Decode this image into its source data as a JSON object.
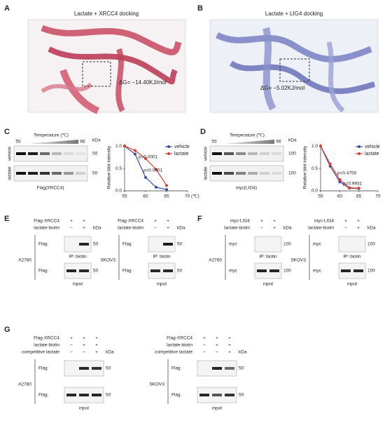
{
  "panels": {
    "A": {
      "letter": "A",
      "title": "Lactate + XRCC4  docking",
      "delta_g": "ΔG= −14.40KJ/mol"
    },
    "B": {
      "letter": "B",
      "title": "Lactate + LIG4  docking",
      "delta_g": "ΔG= −5.02KJ/mol"
    },
    "C": {
      "letter": "C",
      "temperature": "Temperature (℃)",
      "temp_low": "55",
      "temp_high": "66",
      "row_labels": [
        "vehicle",
        "lactate"
      ],
      "kda": "kDa",
      "sizes": [
        "50",
        "50"
      ],
      "antibody": "Flag(XRCC4)",
      "chart": {
        "type": "line",
        "y_label": "Relative blot intensity",
        "x": [
          55,
          57.5,
          60,
          62.5,
          65
        ],
        "xlim": [
          55,
          70
        ],
        "xticks": [
          55,
          60,
          65,
          {
            "value": 70,
            "label": "70 (℃)"
          }
        ],
        "ylim": [
          0,
          1.05
        ],
        "yticks": [
          {
            "value": 0,
            "label": "0.0"
          },
          0.5,
          {
            "value": 1,
            "label": "1.0"
          }
        ],
        "series": [
          {
            "name": "vehicle",
            "color": "#3b4ea6",
            "values": [
              1.0,
              0.82,
              0.3,
              0.08,
              0.03
            ]
          },
          {
            "name": "lactate",
            "color": "#e23a2e",
            "values": [
              1.0,
              0.9,
              0.72,
              0.48,
              0.12
            ]
          }
        ],
        "annotations": [
          "p=0.0001",
          "p=0.0001"
        ]
      }
    },
    "D": {
      "letter": "D",
      "temperature": "Temperature (℃)",
      "temp_low": "55",
      "temp_high": "66",
      "row_labels": [
        "vehicle",
        "lactate"
      ],
      "kda": "kDa",
      "sizes": [
        "100",
        "100"
      ],
      "antibody": "myc(LIG4)",
      "chart": {
        "type": "line",
        "y_label": "Relative blot intensity",
        "x": [
          55,
          57.5,
          60,
          62.5,
          65
        ],
        "xlim": [
          55,
          70
        ],
        "xticks": [
          55,
          60,
          65,
          70
        ],
        "ylim": [
          0,
          1.05
        ],
        "yticks": [
          {
            "value": 0,
            "label": "0.0"
          },
          0.5,
          {
            "value": 1,
            "label": "1.0"
          }
        ],
        "series": [
          {
            "name": "vehicle",
            "color": "#3b4ea6",
            "values": [
              1.0,
              0.55,
              0.2,
              0.06,
              0.05
            ]
          },
          {
            "name": "lactate",
            "color": "#e23a2e",
            "values": [
              1.0,
              0.6,
              0.25,
              0.07,
              0.06
            ]
          }
        ],
        "annotations": [
          "p=0.4750",
          "p=0.9931"
        ]
      }
    },
    "E": {
      "letter": "E",
      "blots": [
        {
          "cell_line": "A2780",
          "rows": [
            {
              "label": "Flag-XRCC4",
              "marks": [
                "+",
                "+"
              ]
            },
            {
              "label": "lactate-biotin",
              "marks": [
                "−",
                "+"
              ]
            }
          ],
          "kda": "kDa",
          "bands": [
            {
              "label": "Flag",
              "size": "50"
            },
            {
              "label": "Flag",
              "size": "50"
            }
          ],
          "ip": "IP: biotin",
          "input": "input"
        },
        {
          "cell_line": "SKOV3",
          "rows": [
            {
              "label": "Flag-XRCC4",
              "marks": [
                "+",
                "+"
              ]
            },
            {
              "label": "lactate-biotin",
              "marks": [
                "−",
                "+"
              ]
            }
          ],
          "kda": "kDa",
          "bands": [
            {
              "label": "Flag",
              "size": "50"
            },
            {
              "label": "Flag",
              "size": "50"
            }
          ],
          "ip": "IP: biotin",
          "input": "input"
        }
      ]
    },
    "F": {
      "letter": "F",
      "blots": [
        {
          "cell_line": "A2780",
          "rows": [
            {
              "label": "myc-LIG4",
              "marks": [
                "+",
                "+"
              ]
            },
            {
              "label": "lactate-biotin",
              "marks": [
                "−",
                "+"
              ]
            }
          ],
          "kda": "kDa",
          "bands": [
            {
              "label": "myc",
              "size": "100"
            },
            {
              "label": "myc",
              "size": "100"
            }
          ],
          "ip": "IP: biotin",
          "input": "input"
        },
        {
          "cell_line": "SKOV3",
          "rows": [
            {
              "label": "myc-LIG4",
              "marks": [
                "+",
                "+"
              ]
            },
            {
              "label": "lactate-biotin",
              "marks": [
                "−",
                "+"
              ]
            }
          ],
          "kda": "kDa",
          "bands": [
            {
              "label": "myc",
              "size": "100"
            },
            {
              "label": "myc",
              "size": "100"
            }
          ],
          "ip": "IP: biotin",
          "input": "input"
        }
      ]
    },
    "G": {
      "letter": "G",
      "blots": [
        {
          "cell_line": "A2780",
          "rows": [
            {
              "label": "Flag-XRCC4",
              "marks": [
                "+",
                "+",
                "+"
              ]
            },
            {
              "label": "lactate-biotin",
              "marks": [
                "−",
                "+",
                "+"
              ]
            },
            {
              "label": "competitive lactate",
              "marks": [
                "−",
                "−",
                "+"
              ]
            }
          ],
          "kda": "kDa",
          "bands": [
            {
              "label": "Flag",
              "size": "50"
            },
            {
              "label": "Flag",
              "size": "50"
            }
          ],
          "input": "input"
        },
        {
          "cell_line": "SKOV3",
          "rows": [
            {
              "label": "Flag-XRCC4",
              "marks": [
                "+",
                "+",
                "+"
              ]
            },
            {
              "label": "lactate-biotin",
              "marks": [
                "−",
                "+",
                "+"
              ]
            },
            {
              "label": "competitive lactate",
              "marks": [
                "−",
                "−",
                "+"
              ]
            }
          ],
          "kda": "kDa",
          "bands": [
            {
              "label": "Flag",
              "size": "50"
            },
            {
              "label": "Flag",
              "size": "50"
            }
          ],
          "input": "input"
        }
      ]
    }
  }
}
